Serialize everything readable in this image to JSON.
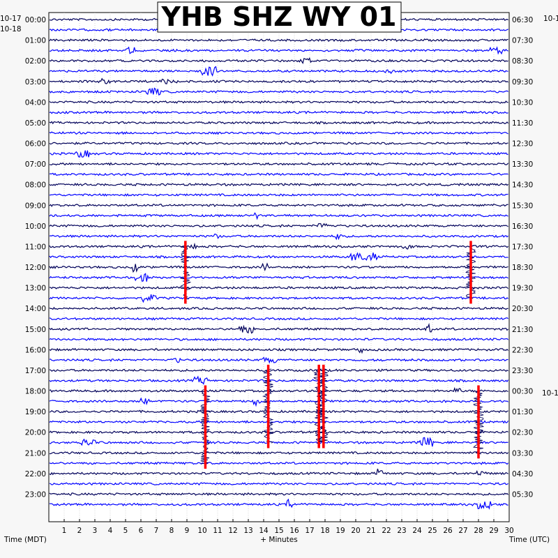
{
  "chart_data": {
    "type": "helicorder",
    "title": "YHB SHZ WY 01",
    "left_axis_label": "Time (MDT)",
    "right_axis_label": "Time (UTC)",
    "x_axis_label": "+ Minutes",
    "left_date_labels": [
      "10-17",
      "10-18"
    ],
    "right_date_labels": [
      "10-1",
      "10-1"
    ],
    "x_range_minutes": [
      0,
      30
    ],
    "x_ticks": [
      "1",
      "2",
      "3",
      "4",
      "5",
      "6",
      "7",
      "8",
      "9",
      "10",
      "11",
      "12",
      "13",
      "14",
      "15",
      "16",
      "17",
      "18",
      "19",
      "20",
      "21",
      "22",
      "23",
      "24",
      "25",
      "26",
      "27",
      "28",
      "29",
      "30"
    ],
    "left_hour_labels": [
      "00:00",
      "01:00",
      "02:00",
      "03:00",
      "04:00",
      "05:00",
      "06:00",
      "07:00",
      "08:00",
      "09:00",
      "10:00",
      "11:00",
      "12:00",
      "13:00",
      "14:00",
      "15:00",
      "16:00",
      "17:00",
      "18:00",
      "19:00",
      "20:00",
      "21:00",
      "22:00",
      "23:00"
    ],
    "right_hour_labels": [
      "06:30",
      "07:30",
      "08:30",
      "09:30",
      "10:30",
      "11:30",
      "12:30",
      "13:30",
      "14:30",
      "15:30",
      "16:30",
      "17:30",
      "18:30",
      "19:30",
      "20:30",
      "21:30",
      "22:30",
      "23:30",
      "00:30",
      "01:30",
      "02:30",
      "03:30",
      "04:30",
      "05:30"
    ],
    "trace_colors": [
      "#0000ff",
      "#00005a",
      "#1a1a9a"
    ],
    "event_marker_color": "#ff0000",
    "trace_count": 48,
    "event_markers": [
      {
        "minute": 8.9,
        "trace_start": 22,
        "trace_end": 27
      },
      {
        "minute": 27.5,
        "trace_start": 22,
        "trace_end": 27
      },
      {
        "minute": 10.2,
        "trace_start": 36,
        "trace_end": 43
      },
      {
        "minute": 14.3,
        "trace_start": 34,
        "trace_end": 41
      },
      {
        "minute": 17.6,
        "trace_start": 34,
        "trace_end": 41
      },
      {
        "minute": 17.9,
        "trace_start": 34,
        "trace_end": 41
      },
      {
        "minute": 28.0,
        "trace_start": 36,
        "trace_end": 42
      }
    ]
  }
}
